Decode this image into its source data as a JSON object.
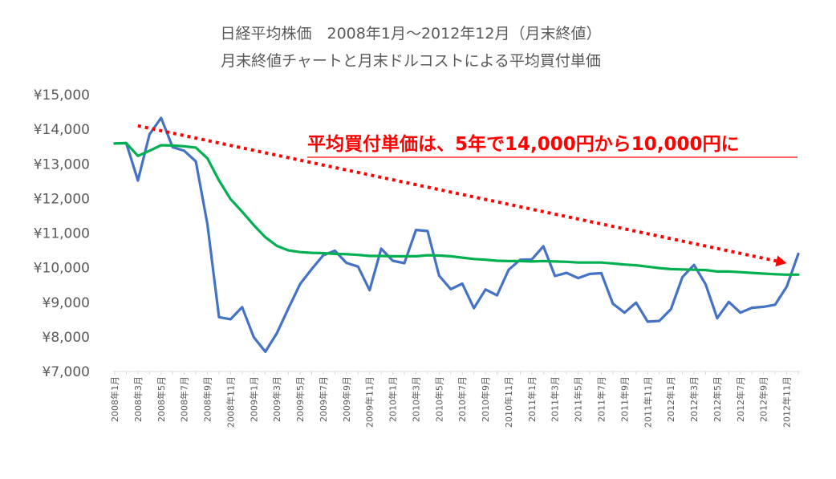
{
  "chart_data": {
    "type": "line",
    "title": "日経平均株価　2008年1月～2012年12月（月末終値）",
    "subtitle": "月末終値チャートと月末ドルコストによる平均買付単価",
    "annotation": "平均買付単価は、5年で14,000円から10,000円に",
    "xlabel": "",
    "ylabel": "",
    "ylim": [
      7000,
      15000
    ],
    "y_ticks": [
      "¥7,000",
      "¥8,000",
      "¥9,000",
      "¥10,000",
      "¥11,000",
      "¥12,000",
      "¥13,000",
      "¥14,000",
      "¥15,000"
    ],
    "x_tick_labels": [
      "2008年1月",
      "2008年3月",
      "2008年5月",
      "2008年7月",
      "2008年9月",
      "2008年11月",
      "2009年1月",
      "2009年3月",
      "2009年5月",
      "2009年7月",
      "2009年9月",
      "2009年11月",
      "2010年1月",
      "2010年3月",
      "2010年5月",
      "2010年7月",
      "2010年9月",
      "2010年11月",
      "2011年1月",
      "2011年3月",
      "2011年5月",
      "2011年7月",
      "2011年9月",
      "2011年11月",
      "2012年1月",
      "2012年3月",
      "2012年5月",
      "2012年7月",
      "2012年9月",
      "2012年11月"
    ],
    "grid": false,
    "legend": "none",
    "series": [
      {
        "color": "#4472c4",
        "values": [
          13590,
          13600,
          12520,
          13850,
          14330,
          13480,
          13380,
          13070,
          11260,
          8570,
          8510,
          8860,
          7990,
          7570,
          8110,
          8830,
          9530,
          9960,
          10360,
          10490,
          10140,
          10030,
          9350,
          10550,
          10200,
          10130,
          11090,
          11060,
          9770,
          9380,
          9540,
          8830,
          9370,
          9200,
          9940,
          10230,
          10240,
          10620,
          9760,
          9850,
          9700,
          9820,
          9840,
          8960,
          8700,
          8990,
          8440,
          8460,
          8800,
          9730,
          10080,
          9520,
          8540,
          9010,
          8700,
          8840,
          8870,
          8930,
          9450,
          10400
        ]
      },
      {
        "color": "#00b050",
        "values": [
          13590,
          13600,
          13230,
          13380,
          13540,
          13530,
          13510,
          13470,
          13160,
          12520,
          11980,
          11620,
          11230,
          10880,
          10630,
          10500,
          10450,
          10430,
          10420,
          10400,
          10390,
          10370,
          10340,
          10340,
          10330,
          10330,
          10330,
          10360,
          10350,
          10330,
          10290,
          10250,
          10230,
          10200,
          10190,
          10190,
          10180,
          10190,
          10180,
          10170,
          10150,
          10150,
          10150,
          10120,
          10090,
          10070,
          10030,
          9990,
          9960,
          9950,
          9940,
          9930,
          9890,
          9890,
          9870,
          9850,
          9830,
          9810,
          9800,
          9800
        ]
      }
    ],
    "trend_arrow": {
      "color": "#ff0000",
      "start": [
        2,
        14100
      ],
      "end": [
        58,
        10130
      ]
    }
  }
}
